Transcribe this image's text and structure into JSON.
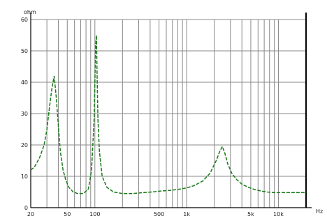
{
  "chart_data": {
    "type": "line",
    "ylabel": "ohm",
    "xlabel": "Hz",
    "x_scale": "log",
    "xlim": [
      20,
      20000
    ],
    "ylim": [
      0,
      60
    ],
    "grid": true,
    "series_color": "#1a7a1a",
    "grid_color": "#888888",
    "y_ticks": [
      {
        "value": 0,
        "label": "0"
      },
      {
        "value": 10,
        "label": "10"
      },
      {
        "value": 20,
        "label": "20"
      },
      {
        "value": 30,
        "label": "30"
      },
      {
        "value": 40,
        "label": "40"
      },
      {
        "value": 50,
        "label": "50"
      },
      {
        "value": 60,
        "label": "60"
      }
    ],
    "x_ticks": [
      {
        "value": 20,
        "label": "20"
      },
      {
        "value": 50,
        "label": "50"
      },
      {
        "value": 100,
        "label": "100"
      },
      {
        "value": 500,
        "label": "500"
      },
      {
        "value": 1000,
        "label": "1k"
      },
      {
        "value": 5000,
        "label": "5k"
      },
      {
        "value": 10000,
        "label": "10k"
      }
    ],
    "series": [
      {
        "x": [
          20,
          22,
          25,
          28,
          30,
          32,
          34,
          36,
          38,
          40,
          42,
          45,
          48,
          52,
          58,
          65,
          75,
          85,
          92,
          98,
          102,
          104,
          106,
          108,
          112,
          120,
          135,
          160,
          200,
          260,
          330,
          420,
          520,
          650,
          800,
          1000,
          1200,
          1500,
          1800,
          2100,
          2300,
          2450,
          2600,
          2800,
          3100,
          3500,
          4000,
          4700,
          5500,
          6500,
          7500,
          9000,
          11000,
          14000,
          17000,
          20000
        ],
        "y": [
          12,
          13,
          16,
          20,
          25,
          32,
          38,
          42,
          35,
          26,
          18,
          12,
          9,
          6.5,
          5,
          4.5,
          4.5,
          6,
          12,
          28,
          52,
          55,
          40,
          28,
          18,
          10,
          6.5,
          5,
          4.5,
          4.5,
          4.8,
          5,
          5.3,
          5.5,
          5.8,
          6.3,
          7,
          8.5,
          11,
          15,
          18,
          19.5,
          17.5,
          14,
          11,
          9,
          7.5,
          6.5,
          5.8,
          5.3,
          5,
          4.8,
          4.8,
          4.8,
          4.8,
          4.8
        ]
      }
    ]
  }
}
